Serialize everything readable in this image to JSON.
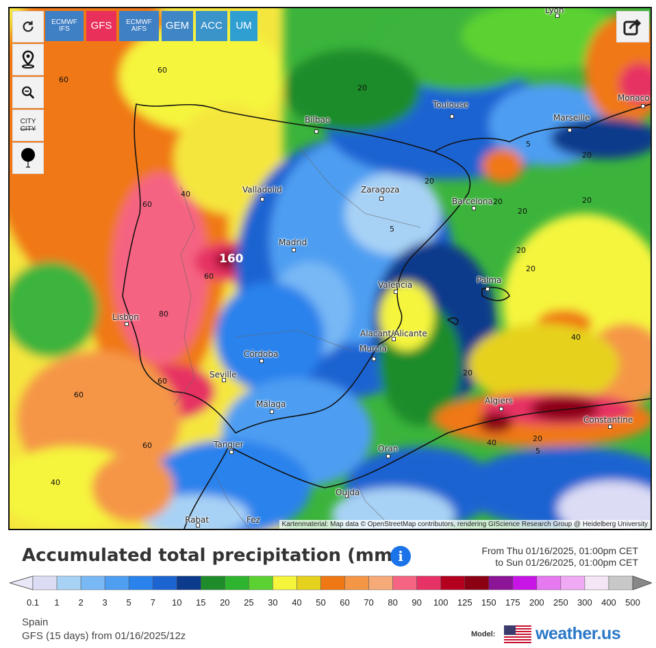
{
  "models": [
    {
      "label": "ECMWF\nIFS",
      "color": "#3f7fc4",
      "active": false
    },
    {
      "label": "GFS",
      "color": "#e8305a",
      "active": true
    },
    {
      "label": "ECMWF\nAIFS",
      "color": "#3f7fc4",
      "active": false
    },
    {
      "label": "GEM",
      "color": "#3f86c6",
      "active": false
    },
    {
      "label": "ACC",
      "color": "#3a93c9",
      "active": false
    },
    {
      "label": "UM",
      "color": "#2f9fd2",
      "active": false
    }
  ],
  "controls": {
    "city_toggle": "CITY",
    "city_toggle_strike": "CITY"
  },
  "cities": [
    {
      "name": "Lyon"
    },
    {
      "name": "Monaco"
    },
    {
      "name": "Toulouse"
    },
    {
      "name": "Marseille"
    },
    {
      "name": "Bilbao"
    },
    {
      "name": "Valladolid"
    },
    {
      "name": "Zaragoza"
    },
    {
      "name": "Barcelona"
    },
    {
      "name": "Madrid"
    },
    {
      "name": "Palma"
    },
    {
      "name": "Valencia"
    },
    {
      "name": "Lisbon"
    },
    {
      "name": "Alacant/Alicante"
    },
    {
      "name": "Córdoba"
    },
    {
      "name": "Murcia"
    },
    {
      "name": "Seville"
    },
    {
      "name": "Algiers"
    },
    {
      "name": "Constantine"
    },
    {
      "name": "Málaga"
    },
    {
      "name": "Tangier"
    },
    {
      "name": "Oran"
    },
    {
      "name": "Oujda"
    },
    {
      "name": "Rabat"
    },
    {
      "name": "Fez"
    }
  ],
  "contour_labels": [
    "160",
    "60",
    "60",
    "40",
    "60",
    "80",
    "60",
    "60",
    "60",
    "40",
    "60",
    "20",
    "20",
    "20",
    "5",
    "5",
    "20",
    "20",
    "20",
    "20",
    "20",
    "40",
    "20",
    "20",
    "40",
    "5"
  ],
  "attribution": "Kartenmaterial: Map data © OpenStreetMap contributors, rendering GIScience Research Group @ Heidelberg University",
  "title": "Accumulated total precipitation (mm)",
  "range_from": "From Thu 01/16/2025, 01:00pm CET",
  "range_to": "to Sun 01/26/2025, 01:00pm CET",
  "legend": {
    "unit": "mm",
    "ticks": [
      "0.1",
      "1",
      "2",
      "3",
      "5",
      "7",
      "10",
      "15",
      "20",
      "25",
      "30",
      "40",
      "50",
      "60",
      "70",
      "80",
      "90",
      "100",
      "125",
      "150",
      "175",
      "200",
      "250",
      "300",
      "400",
      "500"
    ],
    "colors": [
      "#dcdcf5",
      "#a8d2f5",
      "#78b8f5",
      "#4e9ef2",
      "#2a82ec",
      "#1c64d2",
      "#0c3a8c",
      "#1e8c2a",
      "#2eb42e",
      "#5cd232",
      "#f5f53c",
      "#e6d21e",
      "#f07814",
      "#f59646",
      "#f5aa78",
      "#f56482",
      "#e63264",
      "#b4001e",
      "#8c0014",
      "#8c1496",
      "#c814e6",
      "#e678f0",
      "#f0aaf5",
      "#f5e6f5",
      "#c8c8c8"
    ]
  },
  "footer": {
    "region": "Spain",
    "run": "GFS  (15 days)  from 01/16/2025/12z",
    "model_label": "Model:",
    "brand": "weather.us"
  }
}
